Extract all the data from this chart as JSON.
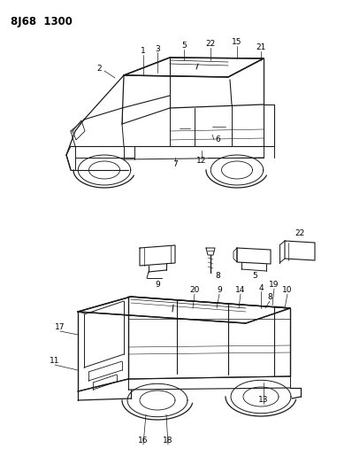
{
  "title": "8J68  1300",
  "bg": "#ffffff",
  "lc": "#1a1a1a",
  "figsize": [
    3.98,
    5.33
  ],
  "dpi": 100
}
